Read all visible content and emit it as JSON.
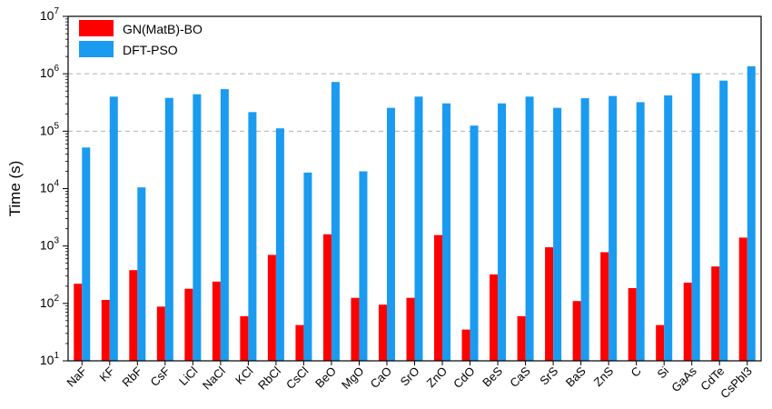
{
  "chart_data": {
    "type": "bar",
    "ylabel": "Time (s)",
    "yscale": "log",
    "ylim": [
      10,
      10000000
    ],
    "y_ticks": [
      {
        "base": "10",
        "exp": "1"
      },
      {
        "base": "10",
        "exp": "2"
      },
      {
        "base": "10",
        "exp": "3"
      },
      {
        "base": "10",
        "exp": "4"
      },
      {
        "base": "10",
        "exp": "5"
      },
      {
        "base": "10",
        "exp": "6"
      },
      {
        "base": "10",
        "exp": "7"
      }
    ],
    "grid": "horizontal dashed at 10^5 and 10^6",
    "legend_position": "top-left",
    "categories": [
      "NaF",
      "KF",
      "RbF",
      "CsF",
      "LiCl",
      "NaCl",
      "KCl",
      "RbCl",
      "CsCl",
      "BeO",
      "MgO",
      "CaO",
      "SrO",
      "ZnO",
      "CdO",
      "BeS",
      "CaS",
      "SrS",
      "BaS",
      "ZnS",
      "C",
      "Si",
      "GaAs",
      "CdTe",
      "CsPbI3"
    ],
    "series": [
      {
        "name": "GN(MatB)-BO",
        "color": "#ff0000",
        "values": [
          220,
          115,
          380,
          88,
          180,
          240,
          60,
          700,
          42,
          1600,
          125,
          95,
          125,
          1550,
          35,
          320,
          60,
          950,
          110,
          780,
          185,
          42,
          230,
          440,
          1400
        ]
      },
      {
        "name": "DFT-PSO",
        "color": "#1a9bf0",
        "values": [
          52000,
          400000,
          10500,
          380000,
          440000,
          540000,
          215000,
          112000,
          19000,
          720000,
          20000,
          255000,
          400000,
          305000,
          125000,
          305000,
          400000,
          255000,
          375000,
          410000,
          320000,
          420000,
          1020000,
          760000,
          1350000
        ]
      }
    ]
  }
}
